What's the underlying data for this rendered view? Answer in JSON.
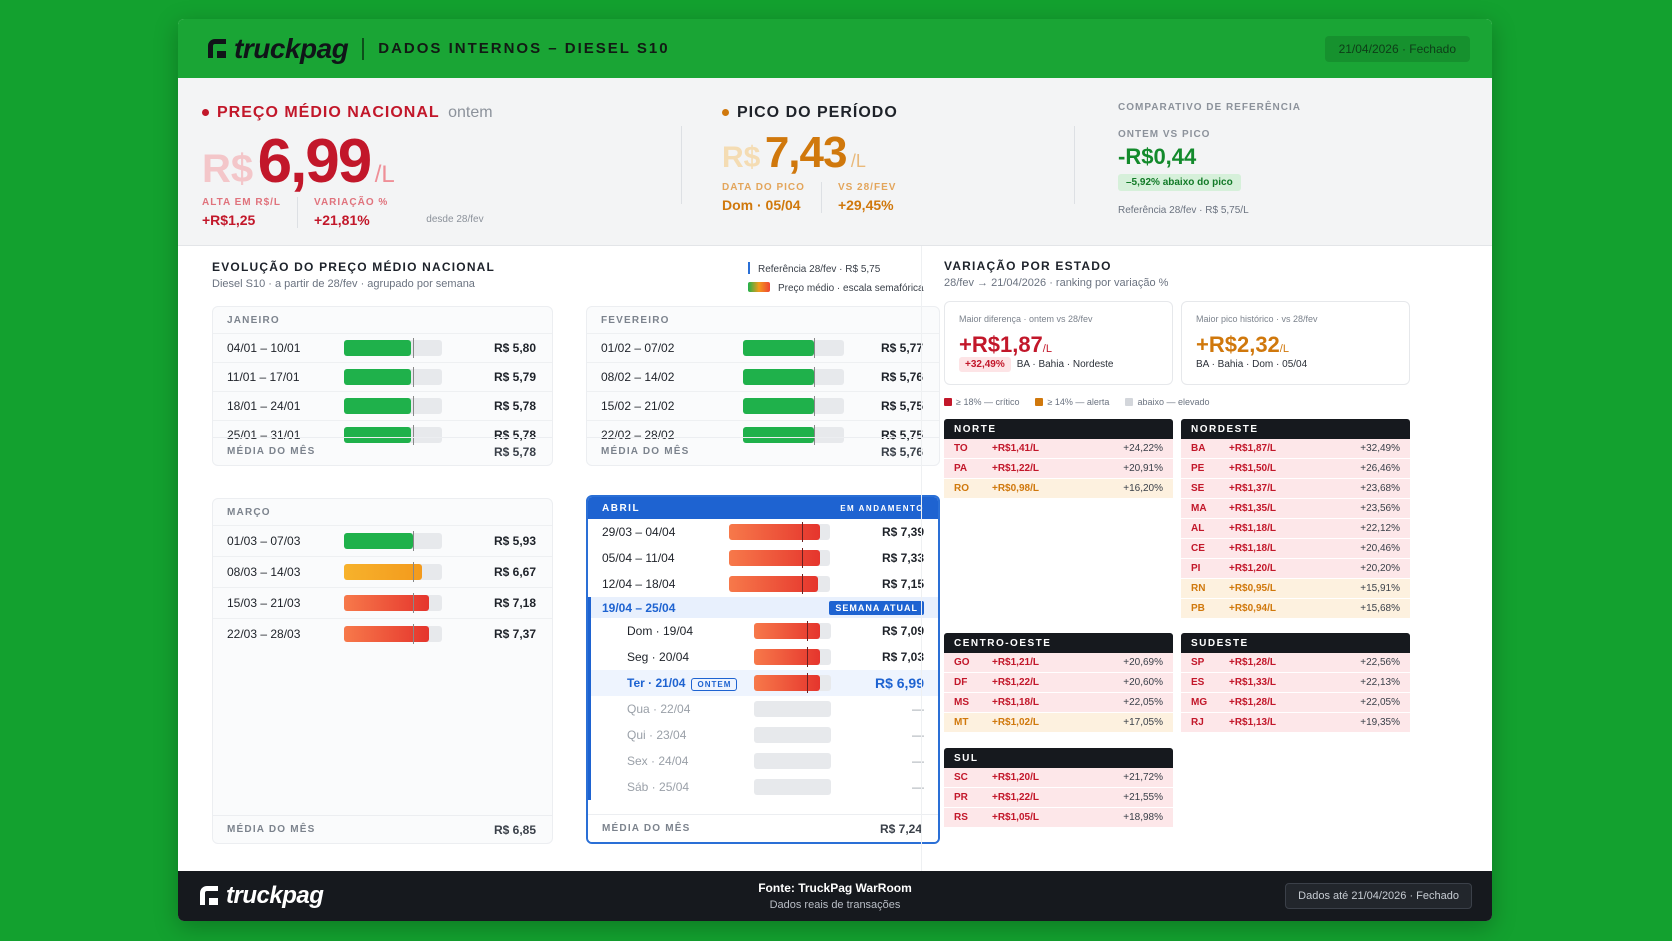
{
  "header": {
    "brand": "truckpag",
    "subtitle": "DADOS INTERNOS – DIESEL S10",
    "badge": "21/04/2026 · Fechado"
  },
  "kpi": {
    "media": {
      "title": "PREÇO MÉDIO NACIONAL",
      "suffix": "ontem",
      "currency": "R$",
      "value": "6,99",
      "unit": "/L",
      "lbl1": "ALTA EM R$/L",
      "val1": "+R$1,25",
      "lbl2": "VARIAÇÃO %",
      "val2": "+21,81%",
      "since": "desde 28/fev"
    },
    "pico": {
      "title": "PICO DO PERÍODO",
      "currency": "R$",
      "value": "7,43",
      "unit": "/L",
      "lbl1": "DATA DO PICO",
      "val1": "Dom · 05/04",
      "lbl2": "VS 28/FEV",
      "val2": "+29,45%"
    },
    "comp": {
      "title": "COMPARATIVO DE REFERÊNCIA",
      "sub": "ONTEM VS PICO",
      "value": "-R$0,44",
      "chip": "–5,92% abaixo do pico",
      "ref": "Referência 28/fev · R$ 5,75/L"
    }
  },
  "evolucao": {
    "title": "EVOLUÇÃO DO PREÇO MÉDIO NACIONAL",
    "subtitle": "Diesel S10 · a partir de 28/fev · agrupado por semana",
    "legend_ref": "Referência 28/fev · R$ 5,75",
    "legend_scale": "Preço médio · escala semafórica"
  },
  "months": {
    "jan": {
      "name": "JANEIRO",
      "rows": [
        {
          "label": "04/01 – 10/01",
          "value": "R$ 5,80",
          "pct": 0.68,
          "color": "#1fb14b"
        },
        {
          "label": "11/01 – 17/01",
          "value": "R$ 5,79",
          "pct": 0.68,
          "color": "#1fb14b"
        },
        {
          "label": "18/01 – 24/01",
          "value": "R$ 5,78",
          "pct": 0.68,
          "color": "#1fb14b"
        },
        {
          "label": "25/01 – 31/01",
          "value": "R$ 5,78",
          "pct": 0.68,
          "color": "#1fb14b"
        }
      ],
      "avg_label": "MÉDIA DO MÊS",
      "avg": "R$ 5,78"
    },
    "fev": {
      "name": "FEVEREIRO",
      "rows": [
        {
          "label": "01/02 – 07/02",
          "value": "R$ 5,77",
          "pct": 0.7,
          "color": "#1fb14b"
        },
        {
          "label": "08/02 – 14/02",
          "value": "R$ 5,76",
          "pct": 0.7,
          "color": "#1fb14b"
        },
        {
          "label": "15/02 – 21/02",
          "value": "R$ 5,75",
          "pct": 0.7,
          "color": "#1fb14b"
        },
        {
          "label": "22/02 – 28/02",
          "value": "R$ 5,75",
          "pct": 0.7,
          "color": "#1fb14b"
        }
      ],
      "avg_label": "MÉDIA DO MÊS",
      "avg": "R$ 5,76"
    },
    "mar": {
      "name": "MARÇO",
      "rows": [
        {
          "label": "01/03 – 07/03",
          "value": "R$ 5,93",
          "pct": 0.7,
          "color": "#1fb14b"
        },
        {
          "label": "08/03 – 14/03",
          "value": "R$ 6,67",
          "pct": 0.8,
          "color": "#f39a1c"
        },
        {
          "label": "15/03 – 21/03",
          "value": "R$ 7,18",
          "pct": 0.87,
          "color": "#ee4c35"
        },
        {
          "label": "22/03 – 28/03",
          "value": "R$ 7,37",
          "pct": 0.87,
          "color": "#ee4c35"
        }
      ],
      "avg_label": "MÉDIA DO MÊS",
      "avg": "R$ 6,85"
    },
    "abr": {
      "name": "ABRIL",
      "status": "EM ANDAMENTO",
      "rows": [
        {
          "label": "29/03 – 04/04",
          "value": "R$ 7,39",
          "pct": 0.9,
          "color": "#ee4433"
        },
        {
          "label": "05/04 – 11/04",
          "value": "R$ 7,33",
          "pct": 0.9,
          "color": "#ee4433"
        },
        {
          "label": "12/04 – 18/04",
          "value": "R$ 7,15",
          "pct": 0.88,
          "color": "#ee4433"
        }
      ],
      "current": {
        "label": "19/04 – 25/04",
        "tag": "SEMANA ATUAL"
      },
      "days": [
        {
          "label": "Dom · 19/04",
          "value": "R$ 7,09",
          "pct": 0.86,
          "color": "#ee4433"
        },
        {
          "label": "Seg · 20/04",
          "value": "R$ 7,03",
          "pct": 0.86,
          "color": "#ee4433"
        },
        {
          "label": "Ter · 21/04",
          "value": "R$ 6,99",
          "pct": 0.86,
          "color": "#ee4433",
          "tag": "ONTEM"
        },
        {
          "label": "Qua · 22/04",
          "value": "—",
          "pct": 0
        },
        {
          "label": "Qui · 23/04",
          "value": "—",
          "pct": 0
        },
        {
          "label": "Sex · 24/04",
          "value": "—",
          "pct": 0
        },
        {
          "label": "Sáb · 25/04",
          "value": "—",
          "pct": 0
        }
      ],
      "avg_label": "MÉDIA DO MÊS",
      "avg": "R$ 7,24"
    }
  },
  "estados": {
    "title": "VARIAÇÃO POR ESTADO",
    "subtitle": "28/fev → 21/04/2026 · ranking por variação %",
    "h1": {
      "title": "Maior diferença · ontem vs 28/fev",
      "value": "+R$1,87",
      "unit": "/L",
      "chip": "+32,49%",
      "meta": "BA · Bahia · Nordeste"
    },
    "h2": {
      "title": "Maior pico histórico · vs 28/fev",
      "value": "+R$2,32",
      "unit": "/L",
      "meta": "BA · Bahia · Dom · 05/04"
    },
    "legend": {
      "critico": "≥ 18% — crítico",
      "alerta": "≥ 14% — alerta",
      "elevado": "abaixo — elevado"
    },
    "regions": {
      "norte": {
        "name": "NORTE",
        "rows": [
          {
            "uf": "TO",
            "diff": "+R$1,41/L",
            "pct": "+24,22%",
            "lvl": "crit"
          },
          {
            "uf": "PA",
            "diff": "+R$1,22/L",
            "pct": "+20,91%",
            "lvl": "crit"
          },
          {
            "uf": "RO",
            "diff": "+R$0,98/L",
            "pct": "+16,20%",
            "lvl": "alert"
          }
        ]
      },
      "nordeste": {
        "name": "NORDESTE",
        "rows": [
          {
            "uf": "BA",
            "diff": "+R$1,87/L",
            "pct": "+32,49%",
            "lvl": "crit"
          },
          {
            "uf": "PE",
            "diff": "+R$1,50/L",
            "pct": "+26,46%",
            "lvl": "crit"
          },
          {
            "uf": "SE",
            "diff": "+R$1,37/L",
            "pct": "+23,68%",
            "lvl": "crit"
          },
          {
            "uf": "MA",
            "diff": "+R$1,35/L",
            "pct": "+23,56%",
            "lvl": "crit"
          },
          {
            "uf": "AL",
            "diff": "+R$1,18/L",
            "pct": "+22,12%",
            "lvl": "crit"
          },
          {
            "uf": "CE",
            "diff": "+R$1,18/L",
            "pct": "+20,46%",
            "lvl": "crit"
          },
          {
            "uf": "PI",
            "diff": "+R$1,20/L",
            "pct": "+20,20%",
            "lvl": "crit"
          },
          {
            "uf": "RN",
            "diff": "+R$0,95/L",
            "pct": "+15,91%",
            "lvl": "alert"
          },
          {
            "uf": "PB",
            "diff": "+R$0,94/L",
            "pct": "+15,68%",
            "lvl": "alert"
          }
        ]
      },
      "centro": {
        "name": "CENTRO-OESTE",
        "rows": [
          {
            "uf": "GO",
            "diff": "+R$1,21/L",
            "pct": "+20,69%",
            "lvl": "crit"
          },
          {
            "uf": "DF",
            "diff": "+R$1,22/L",
            "pct": "+20,60%",
            "lvl": "crit"
          },
          {
            "uf": "MS",
            "diff": "+R$1,18/L",
            "pct": "+22,05%",
            "lvl": "crit"
          },
          {
            "uf": "MT",
            "diff": "+R$1,02/L",
            "pct": "+17,05%",
            "lvl": "alert"
          }
        ]
      },
      "sudeste": {
        "name": "SUDESTE",
        "rows": [
          {
            "uf": "SP",
            "diff": "+R$1,28/L",
            "pct": "+22,56%",
            "lvl": "crit"
          },
          {
            "uf": "ES",
            "diff": "+R$1,33/L",
            "pct": "+22,13%",
            "lvl": "crit"
          },
          {
            "uf": "MG",
            "diff": "+R$1,28/L",
            "pct": "+22,05%",
            "lvl": "crit"
          },
          {
            "uf": "RJ",
            "diff": "+R$1,13/L",
            "pct": "+19,35%",
            "lvl": "crit"
          }
        ]
      },
      "sul": {
        "name": "SUL",
        "rows": [
          {
            "uf": "SC",
            "diff": "+R$1,20/L",
            "pct": "+21,72%",
            "lvl": "crit"
          },
          {
            "uf": "PR",
            "diff": "+R$1,22/L",
            "pct": "+21,55%",
            "lvl": "crit"
          },
          {
            "uf": "RS",
            "diff": "+R$1,05/L",
            "pct": "+18,98%",
            "lvl": "crit"
          }
        ]
      }
    }
  },
  "footer": {
    "brand": "truckpag",
    "source": "Fonte: TruckPag WarRoom",
    "source2": "Dados reais de transações",
    "badge": "Dados até 21/04/2026 · Fechado"
  },
  "colors": {
    "green": "#1aa535",
    "red": "#c2172a",
    "orange": "#d0780c",
    "blue": "#1e63d1"
  }
}
